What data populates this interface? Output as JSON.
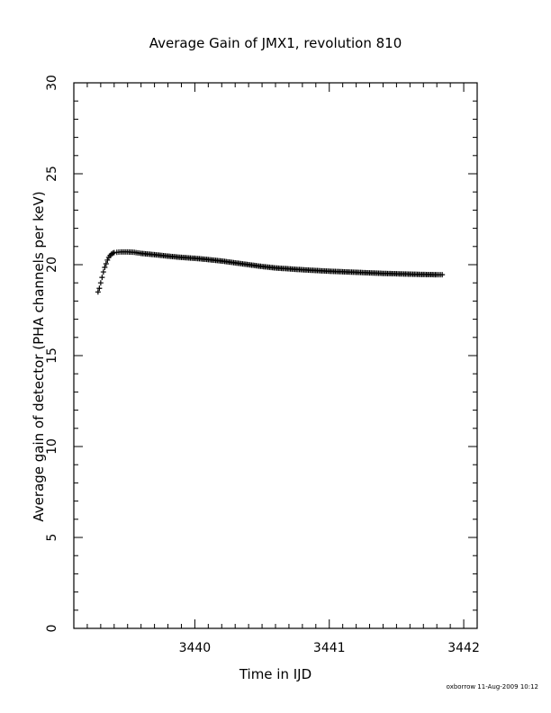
{
  "chart_data": {
    "type": "scatter",
    "title": "Average Gain of JMX1, revolution 810",
    "xlabel": "Time in IJD",
    "ylabel": "Average gain of detector (PHA channels per keV)",
    "xlim": [
      3439.1,
      3442.1
    ],
    "ylim": [
      0,
      30
    ],
    "x_ticks": [
      3440,
      3441,
      3442
    ],
    "y_ticks": [
      0,
      5,
      10,
      15,
      20,
      25,
      30
    ],
    "marker": "plus",
    "color": "#000000",
    "grid": false,
    "series": [
      {
        "x": [
          3439.28,
          3439.29,
          3439.3,
          3439.31,
          3439.32,
          3439.33,
          3439.34,
          3439.35,
          3439.36,
          3439.37,
          3439.38,
          3439.39,
          3439.4,
          3439.42,
          3439.45,
          3439.5,
          3439.55,
          3439.6,
          3439.7,
          3439.8,
          3439.9,
          3440.0,
          3440.1,
          3440.2,
          3440.3,
          3440.4,
          3440.5,
          3440.6,
          3440.7,
          3440.8,
          3440.9,
          3441.0,
          3441.1,
          3441.2,
          3441.3,
          3441.4,
          3441.5,
          3441.6,
          3441.7,
          3441.8,
          3441.84
        ],
        "y": [
          18.5,
          18.7,
          19.0,
          19.3,
          19.6,
          19.85,
          20.05,
          20.25,
          20.4,
          20.5,
          20.58,
          20.63,
          20.66,
          20.68,
          20.7,
          20.7,
          20.68,
          20.62,
          20.55,
          20.47,
          20.4,
          20.35,
          20.28,
          20.2,
          20.1,
          20.0,
          19.9,
          19.82,
          19.77,
          19.72,
          19.68,
          19.64,
          19.61,
          19.58,
          19.55,
          19.52,
          19.5,
          19.48,
          19.46,
          19.45,
          19.45
        ]
      }
    ]
  },
  "footer": {
    "stamp": "oxborrow 11-Aug-2009 10:12"
  }
}
